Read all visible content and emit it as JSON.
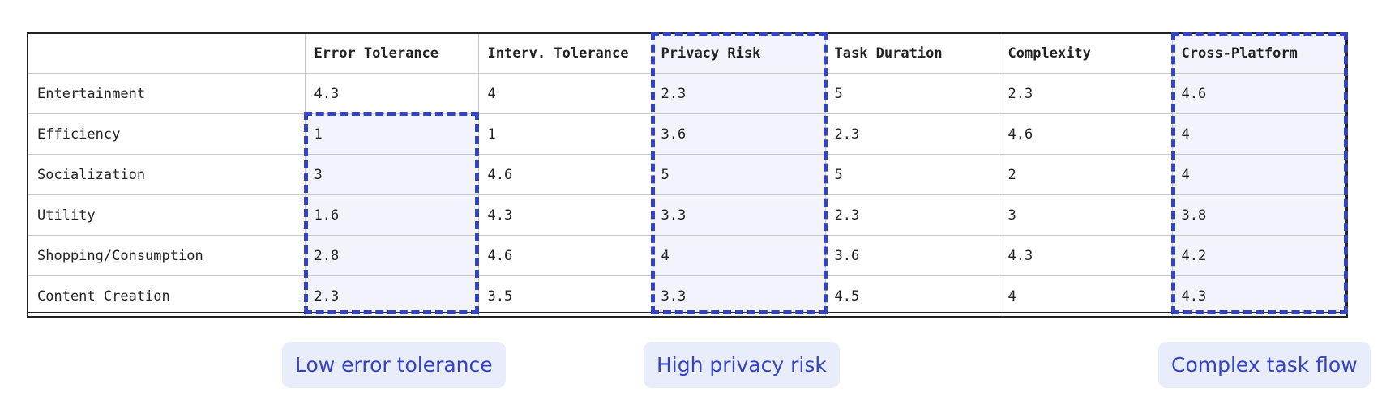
{
  "table": {
    "columns": [
      "",
      "Error Tolerance",
      "Interv. Tolerance",
      "Privacy Risk",
      "Task Duration",
      "Complexity",
      "Cross-Platform"
    ],
    "rows": [
      {
        "label": "Entertainment",
        "values": [
          "4.3",
          "4",
          "2.3",
          "5",
          "2.3",
          "4.6"
        ]
      },
      {
        "label": "Efficiency",
        "values": [
          "1",
          "1",
          "3.6",
          "2.3",
          "4.6",
          "4"
        ]
      },
      {
        "label": "Socialization",
        "values": [
          "3",
          "4.6",
          "5",
          "5",
          "2",
          "4"
        ]
      },
      {
        "label": "Utility",
        "values": [
          "1.6",
          "4.3",
          "3.3",
          "2.3",
          "3",
          "3.8"
        ]
      },
      {
        "label": "Shopping/Consumption",
        "values": [
          "2.8",
          "4.6",
          "4",
          "3.6",
          "4.3",
          "4.2"
        ]
      },
      {
        "label": "Content Creation",
        "values": [
          "2.3",
          "3.5",
          "3.3",
          "4.5",
          "4",
          "4.3"
        ]
      }
    ]
  },
  "annotations": [
    {
      "label": "Low error tolerance"
    },
    {
      "label": "High privacy risk"
    },
    {
      "label": "Complex task flow"
    }
  ],
  "colors": {
    "accent": "#3343c2",
    "highlight_fill": "#f3f4fb",
    "note_fill": "#e9ecfb"
  }
}
